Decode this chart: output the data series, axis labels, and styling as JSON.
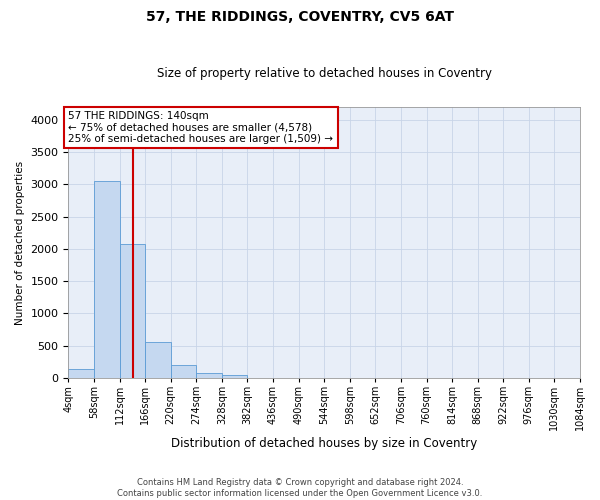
{
  "title": "57, THE RIDDINGS, COVENTRY, CV5 6AT",
  "subtitle": "Size of property relative to detached houses in Coventry",
  "xlabel": "Distribution of detached houses by size in Coventry",
  "ylabel": "Number of detached properties",
  "footer_line1": "Contains HM Land Registry data © Crown copyright and database right 2024.",
  "footer_line2": "Contains public sector information licensed under the Open Government Licence v3.0.",
  "annotation_line1": "57 THE RIDDINGS: 140sqm",
  "annotation_line2": "← 75% of detached houses are smaller (4,578)",
  "annotation_line3": "25% of semi-detached houses are larger (1,509) →",
  "property_size": 140,
  "bin_edges": [
    4,
    58,
    112,
    166,
    220,
    274,
    328,
    382,
    436,
    490,
    544,
    598,
    652,
    706,
    760,
    814,
    868,
    922,
    976,
    1030,
    1084
  ],
  "bar_values": [
    130,
    3060,
    2080,
    560,
    200,
    80,
    50,
    0,
    0,
    0,
    0,
    0,
    0,
    0,
    0,
    0,
    0,
    0,
    0,
    0
  ],
  "bar_color": "#c5d8f0",
  "bar_edge_color": "#5b9bd5",
  "vline_color": "#cc0000",
  "vline_x": 140,
  "ylim": [
    0,
    4200
  ],
  "yticks": [
    0,
    500,
    1000,
    1500,
    2000,
    2500,
    3000,
    3500,
    4000
  ],
  "grid_color": "#c8d4e8",
  "background_color": "#ffffff",
  "plot_bg_color": "#e8eef8",
  "annotation_box_facecolor": "#ffffff",
  "annotation_box_edge": "#cc0000",
  "title_fontsize": 10,
  "subtitle_fontsize": 8.5,
  "xlabel_fontsize": 8.5,
  "ylabel_fontsize": 7.5,
  "xtick_fontsize": 7,
  "ytick_fontsize": 8,
  "annotation_fontsize": 7.5,
  "footer_fontsize": 6
}
